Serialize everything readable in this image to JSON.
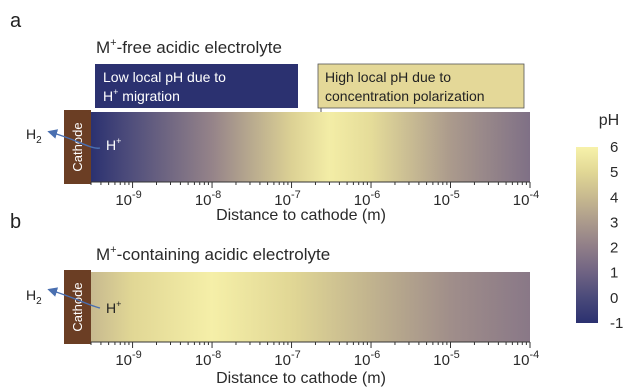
{
  "panels": [
    {
      "letter": "a",
      "title_pre": "M",
      "title_sup": "+",
      "title_post": "-free acidic electrolyte",
      "cathode": "Cathode",
      "h2": "H",
      "h2_sub": "2",
      "hplus": "H",
      "hplus_sup": "+",
      "xlabel": "Distance to cathode (m)",
      "ph_profile": [
        {
          "d": 3e-10,
          "ph": -1.0
        },
        {
          "d": 1e-09,
          "ph": 0.2
        },
        {
          "d": 1e-08,
          "ph": 2.2
        },
        {
          "d": 1e-07,
          "ph": 4.8
        },
        {
          "d": 3e-07,
          "ph": 5.8
        },
        {
          "d": 1e-06,
          "ph": 5.2
        },
        {
          "d": 1e-05,
          "ph": 3.0
        },
        {
          "d": 0.0001,
          "ph": 1.5
        }
      ],
      "callouts": [
        {
          "line1": "Low local pH due to",
          "line2_pre": "H",
          "line2_sup": "+",
          "line2_post": " migration",
          "style": "dark"
        },
        {
          "line1": "High local pH due to",
          "line2_pre": "concentration polarization",
          "line2_sup": "",
          "line2_post": "",
          "style": "light"
        }
      ]
    },
    {
      "letter": "b",
      "title_pre": "M",
      "title_sup": "+",
      "title_post": "-containing acidic electrolyte",
      "cathode": "Cathode",
      "h2": "H",
      "h2_sub": "2",
      "hplus": "H",
      "hplus_sup": "+",
      "xlabel": "Distance to cathode (m)",
      "ph_profile": [
        {
          "d": 3e-10,
          "ph": 4.0
        },
        {
          "d": 1e-09,
          "ph": 5.0
        },
        {
          "d": 1e-08,
          "ph": 5.9
        },
        {
          "d": 1e-07,
          "ph": 5.0
        },
        {
          "d": 1e-06,
          "ph": 3.8
        },
        {
          "d": 1e-05,
          "ph": 2.6
        },
        {
          "d": 0.0001,
          "ph": 1.8
        }
      ],
      "callouts": []
    }
  ],
  "axis": {
    "ticks": [
      {
        "base": "10",
        "exp": "-9",
        "value": 1e-09
      },
      {
        "base": "10",
        "exp": "-8",
        "value": 1e-08
      },
      {
        "base": "10",
        "exp": "-7",
        "value": 1e-07
      },
      {
        "base": "10",
        "exp": "-6",
        "value": 1e-06
      },
      {
        "base": "10",
        "exp": "-5",
        "value": 1e-05
      },
      {
        "base": "10",
        "exp": "-4",
        "value": 0.0001
      }
    ],
    "scale": "log"
  },
  "colorbar": {
    "title": "pH",
    "labels": [
      "6",
      "5",
      "4",
      "3",
      "2",
      "1",
      "0",
      "-1"
    ],
    "range": [
      -1,
      6
    ],
    "colors": [
      "#2b3170",
      "#4a4a7a",
      "#6f6383",
      "#8f7d88",
      "#ab9a8c",
      "#c7b98f",
      "#e1d795",
      "#f7f2aa"
    ]
  },
  "colors": {
    "cathode": "#6b3e24",
    "dark_callout": "#2b3170",
    "light_callout": "#e4d898",
    "arrow": "#4a6fb0"
  }
}
